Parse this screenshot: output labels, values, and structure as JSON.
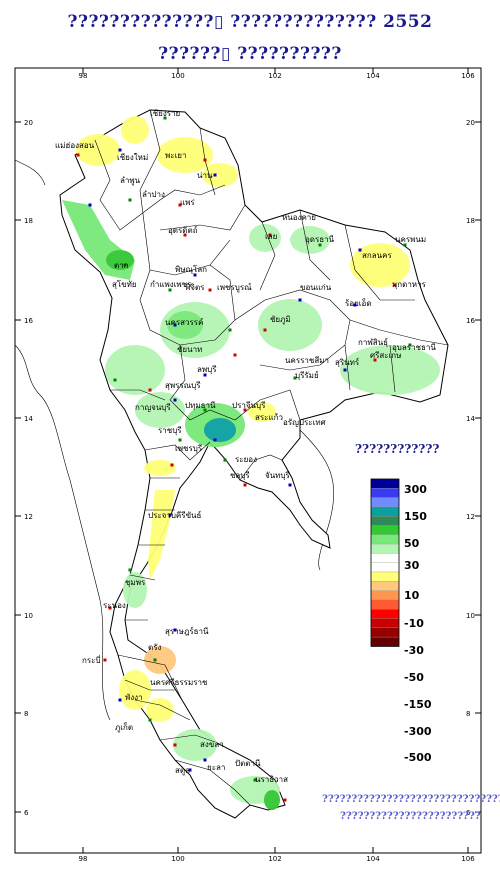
{
  "title_line1": "??????????????▯  ?????????????? 2552",
  "title_line2": "??????▯  ??????????",
  "legend_title": "????????????",
  "note_line1": "???????????????????????????????",
  "note_line2": "????????????????????????",
  "axes": {
    "x_ticks": [
      "98",
      "100",
      "102",
      "104",
      "106"
    ],
    "y_ticks": [
      "20",
      "18",
      "16",
      "14",
      "12",
      "10",
      "8",
      "6"
    ]
  },
  "legend": {
    "labels": [
      "300",
      "150",
      "50",
      "30",
      "10",
      "-10",
      "-30",
      "-50",
      "-150",
      "-300",
      "-500"
    ],
    "colors": [
      "#000096",
      "#3a3af0",
      "#6e8cff",
      "#0aa0a0",
      "#2e8b57",
      "#32c832",
      "#78e878",
      "#b4f5b4",
      "#ffffff",
      "#ffffff",
      "#ffff78",
      "#ffc87d",
      "#ff9650",
      "#ff5a32",
      "#ff0000",
      "#c80000",
      "#960000",
      "#640000"
    ]
  },
  "places": [
    "เชียงราย",
    "แม่ฮ่องสอน",
    "เชียงใหม่",
    "ลำพูน",
    "พะเยา",
    "น่าน",
    "ลำปาง",
    "แพร่",
    "ตาก",
    "อุตรดิตถ์",
    "สุโขทัย",
    "พิษณุโลก",
    "กำแพงเพชร",
    "พิจิตร",
    "เพชรบูรณ์",
    "นครสวรรค์",
    "ชัยภูมิ",
    "ขอนแก่น",
    "หนองคาย",
    "อุดรธานี",
    "เลย",
    "สกลนคร",
    "นครพนม",
    "มุกดาหาร",
    "ร้อยเอ็ด",
    "กาฬสินธุ์",
    "อุบลราชธานี",
    "ศรีสะเกษ",
    "สุรินทร์",
    "บุรีรัมย์",
    "นครราชสีมา",
    "ลพบุรี",
    "สุพรรณบุรี",
    "กาญจนบุรี",
    "ปทุมธานี",
    "ราชบุรี",
    "ปราจีนบุรี",
    "สระแก้ว",
    "ชลบุรี",
    "ระยอง",
    "จันทบุรี",
    "เพชรบุรี",
    "ประจวบคีรีขันธ์",
    "ชุมพร",
    "ระนอง",
    "สุราษฎร์ธานี",
    "นครศรีธรรมราช",
    "กระบี่",
    "พังงา",
    "ภูเก็ต",
    "ตรัง",
    "สงขลา",
    "ยะลา",
    "ปัตตานี",
    "นราธิวาส",
    "สตูล",
    "อรัญประเทศ",
    "ชัยนาท"
  ]
}
